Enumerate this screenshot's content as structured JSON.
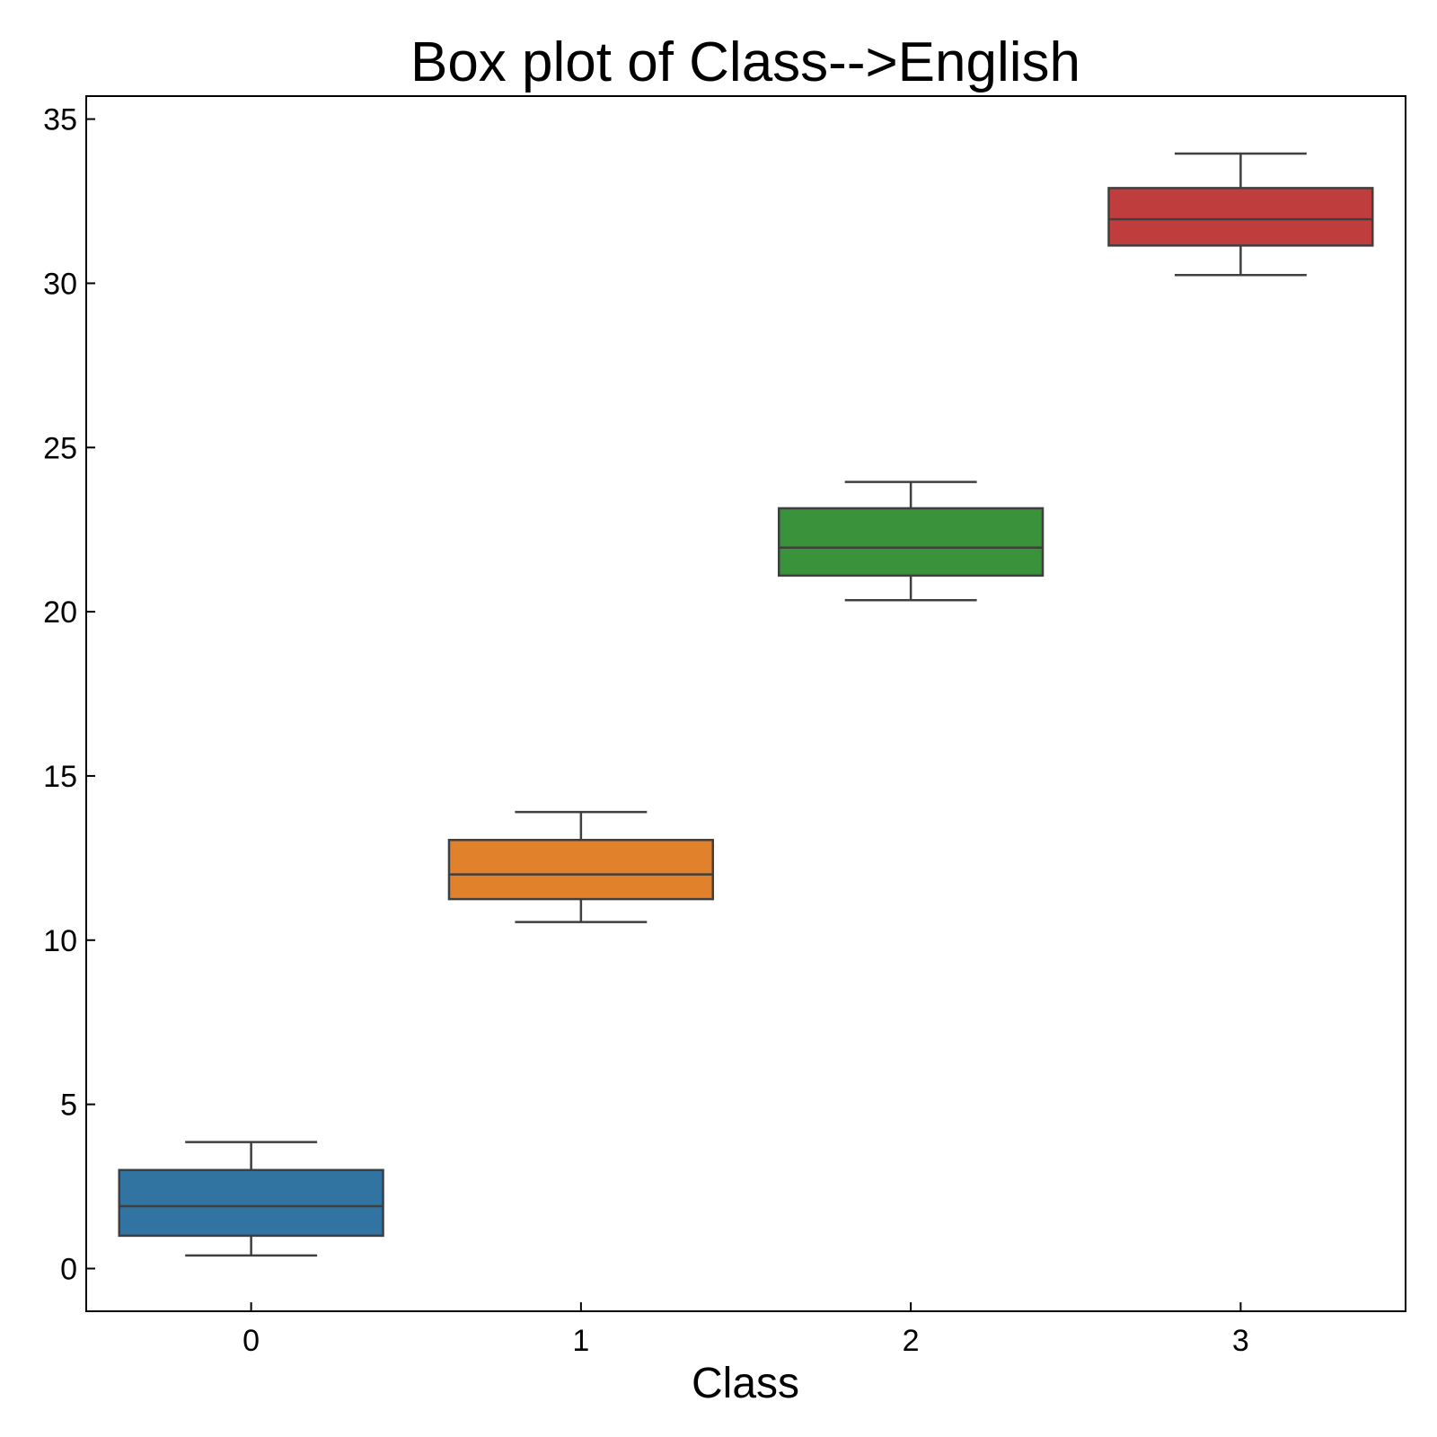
{
  "chart_data": {
    "type": "box",
    "title": "Box plot of Class-->English",
    "xlabel": "Class",
    "ylabel": "",
    "categories": [
      "0",
      "1",
      "2",
      "3"
    ],
    "boxes": [
      {
        "category": "0",
        "whisker_low": 0.4,
        "q1": 1.0,
        "median": 1.9,
        "q3": 3.0,
        "whisker_high": 3.85,
        "color": "#3274a1"
      },
      {
        "category": "1",
        "whisker_low": 10.55,
        "q1": 11.25,
        "median": 12.0,
        "q3": 13.05,
        "whisker_high": 13.9,
        "color": "#e1812c"
      },
      {
        "category": "2",
        "whisker_low": 20.35,
        "q1": 21.1,
        "median": 21.95,
        "q3": 23.15,
        "whisker_high": 23.95,
        "color": "#3a923a"
      },
      {
        "category": "3",
        "whisker_low": 30.25,
        "q1": 31.15,
        "median": 31.95,
        "q3": 32.9,
        "whisker_high": 33.95,
        "color": "#c03d3e"
      }
    ],
    "yticks": [
      0,
      5,
      10,
      15,
      20,
      25,
      30,
      35
    ],
    "ylim": [
      -1.3,
      35.7
    ],
    "xlim": [
      -0.5,
      3.5
    ],
    "grid": false,
    "legend": "none"
  }
}
